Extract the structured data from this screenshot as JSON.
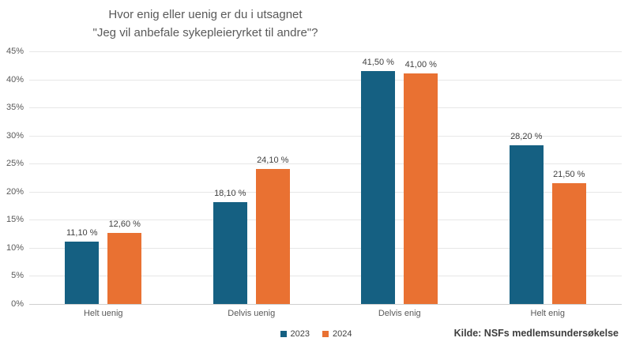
{
  "chart": {
    "title_line1": "Hvor enig eller uenig er du i utsagnet",
    "title_line2": "\"Jeg vil anbefale sykepleieryrket til andre\"?",
    "source": "Kilde: NSFs medlemsundersøkelse"
  },
  "chart_data": {
    "type": "bar",
    "title": "Hvor enig eller uenig er du i utsagnet \"Jeg vil anbefale sykepleieryrket til andre\"?",
    "categories": [
      "Helt uenig",
      "Delvis uenig",
      "Delvis enig",
      "Helt enig"
    ],
    "series": [
      {
        "name": "2023",
        "color": "#156082",
        "values": [
          11.1,
          18.1,
          41.5,
          28.2
        ],
        "labels": [
          "11,10 %",
          "18,10 %",
          "41,50 %",
          "28,20 %"
        ]
      },
      {
        "name": "2024",
        "color": "#E97132",
        "values": [
          12.6,
          24.1,
          41.0,
          21.5
        ],
        "labels": [
          "12,60 %",
          "24,10 %",
          "41,00 %",
          "21,50 %"
        ]
      }
    ],
    "xlabel": "",
    "ylabel": "",
    "ylim": [
      0,
      45
    ],
    "yticks": [
      0,
      5,
      10,
      15,
      20,
      25,
      30,
      35,
      40,
      45
    ],
    "ytick_labels": [
      "0%",
      "5%",
      "10%",
      "15%",
      "20%",
      "25%",
      "30%",
      "35%",
      "40%",
      "45%"
    ],
    "grid": true,
    "legend_position": "bottom"
  }
}
